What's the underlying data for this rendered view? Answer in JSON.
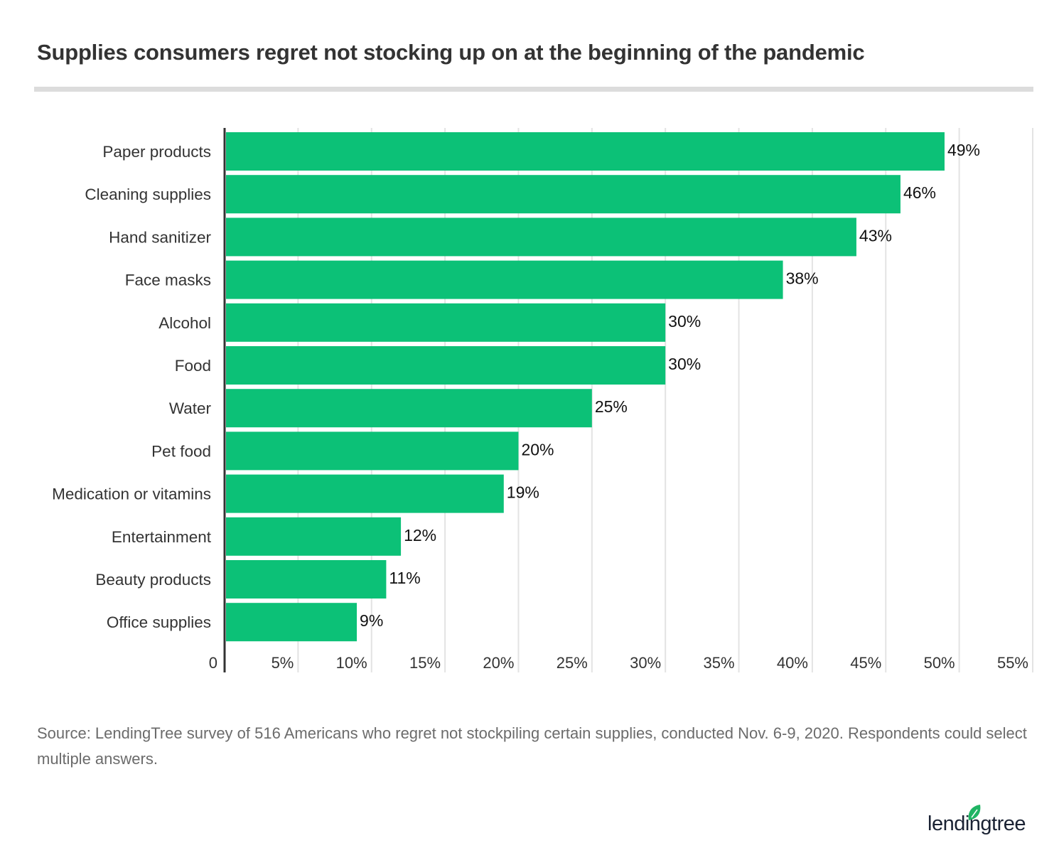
{
  "chart_data": {
    "type": "bar",
    "orientation": "horizontal",
    "title": "Supplies consumers regret not stocking up on at the beginning of the pandemic",
    "categories": [
      "Paper products",
      "Cleaning supplies",
      "Hand sanitizer",
      "Face masks",
      "Alcohol",
      "Food",
      "Water",
      "Pet food",
      "Medication or vitamins",
      "Entertainment",
      "Beauty products",
      "Office supplies"
    ],
    "values": [
      49,
      46,
      43,
      38,
      30,
      30,
      25,
      20,
      19,
      12,
      11,
      9
    ],
    "data_labels": [
      "49%",
      "46%",
      "43%",
      "38%",
      "30%",
      "30%",
      "25%",
      "20%",
      "19%",
      "12%",
      "11%",
      "9%"
    ],
    "xlim": [
      0,
      55
    ],
    "x_ticks": [
      0,
      5,
      10,
      15,
      20,
      25,
      30,
      35,
      40,
      45,
      50,
      55
    ],
    "x_tick_labels": [
      "0",
      "5%",
      "10%",
      "15%",
      "20%",
      "25%",
      "30%",
      "35%",
      "40%",
      "45%",
      "50%",
      "55%"
    ],
    "grid": true,
    "bar_color": "#0cc177"
  },
  "source": "Source: LendingTree survey of 516 Americans who regret not stockpiling certain supplies, conducted Nov. 6-9, 2020. Respondents could select multiple answers.",
  "logo": {
    "text": "lendingtree",
    "icon": "leaf-icon",
    "color": "#1fb463"
  }
}
